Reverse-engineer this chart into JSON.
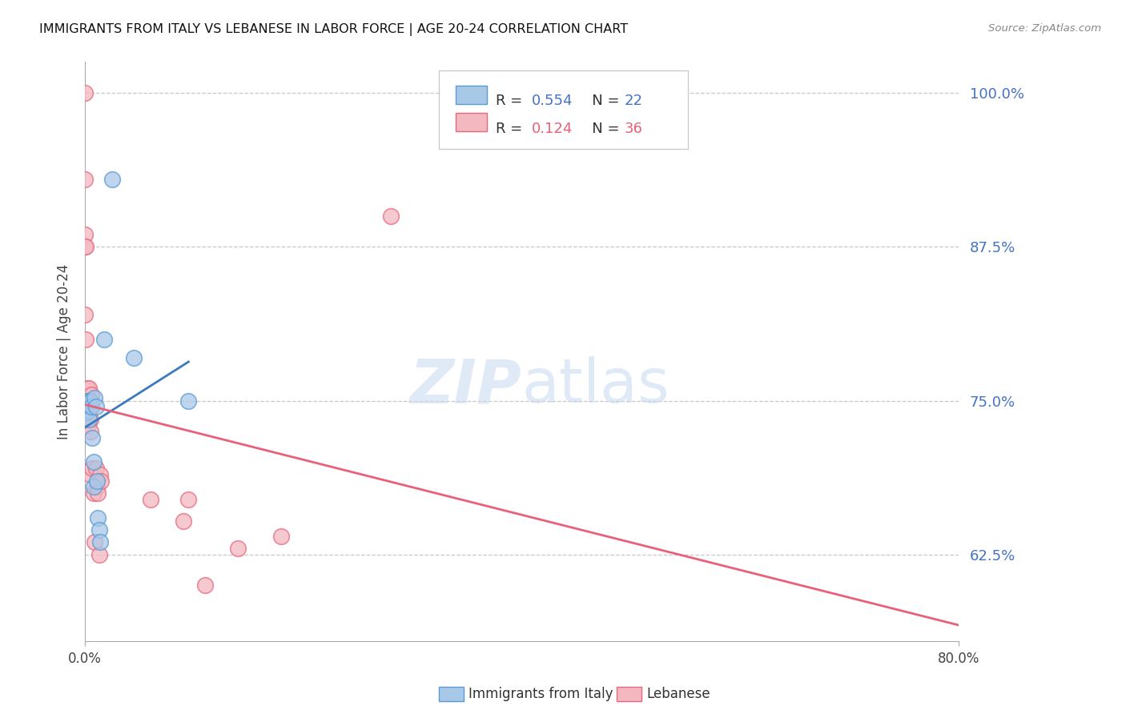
{
  "title": "IMMIGRANTS FROM ITALY VS LEBANESE IN LABOR FORCE | AGE 20-24 CORRELATION CHART",
  "source": "Source: ZipAtlas.com",
  "ylabel": "In Labor Force | Age 20-24",
  "ytick_labels": [
    "100.0%",
    "87.5%",
    "75.0%",
    "62.5%"
  ],
  "ytick_values": [
    1.0,
    0.875,
    0.75,
    0.625
  ],
  "xlim": [
    0.0,
    0.8
  ],
  "ylim": [
    0.555,
    1.025
  ],
  "watermark": "ZIPatlas",
  "italy_color": "#a8c8e8",
  "lebanese_color": "#f4b8c1",
  "italy_edge_color": "#5b9bd5",
  "lebanese_edge_color": "#e8697d",
  "italy_line_color": "#3a7abf",
  "lebanese_line_color": "#e8607a",
  "legend_italy_r": "R = 0.554",
  "legend_italy_n": "N = 22",
  "legend_leb_r": "R = 0.124",
  "legend_leb_n": "N = 36",
  "italy_x": [
    0.0,
    0.0,
    0.0,
    0.003,
    0.003,
    0.003,
    0.004,
    0.005,
    0.006,
    0.007,
    0.008,
    0.008,
    0.009,
    0.01,
    0.011,
    0.012,
    0.013,
    0.014,
    0.018,
    0.025,
    0.045,
    0.095
  ],
  "italy_y": [
    0.75,
    0.745,
    0.74,
    0.75,
    0.748,
    0.742,
    0.735,
    0.75,
    0.745,
    0.72,
    0.7,
    0.68,
    0.752,
    0.745,
    0.685,
    0.655,
    0.645,
    0.635,
    0.8,
    0.93,
    0.785,
    0.75
  ],
  "leb_x": [
    0.0,
    0.0,
    0.0,
    0.0,
    0.0,
    0.001,
    0.001,
    0.002,
    0.002,
    0.003,
    0.003,
    0.003,
    0.004,
    0.004,
    0.004,
    0.005,
    0.005,
    0.005,
    0.006,
    0.006,
    0.007,
    0.008,
    0.009,
    0.01,
    0.011,
    0.012,
    0.013,
    0.014,
    0.015,
    0.06,
    0.09,
    0.095,
    0.11,
    0.14,
    0.18,
    0.28
  ],
  "leb_y": [
    1.0,
    0.93,
    0.885,
    0.875,
    0.82,
    0.875,
    0.8,
    0.76,
    0.75,
    0.75,
    0.745,
    0.73,
    0.76,
    0.75,
    0.74,
    0.735,
    0.725,
    0.69,
    0.755,
    0.745,
    0.695,
    0.675,
    0.635,
    0.695,
    0.68,
    0.675,
    0.625,
    0.69,
    0.685,
    0.67,
    0.652,
    0.67,
    0.6,
    0.63,
    0.64,
    0.9
  ],
  "italy_line_x": [
    0.0,
    0.095
  ],
  "leb_line_x": [
    0.0,
    0.8
  ]
}
